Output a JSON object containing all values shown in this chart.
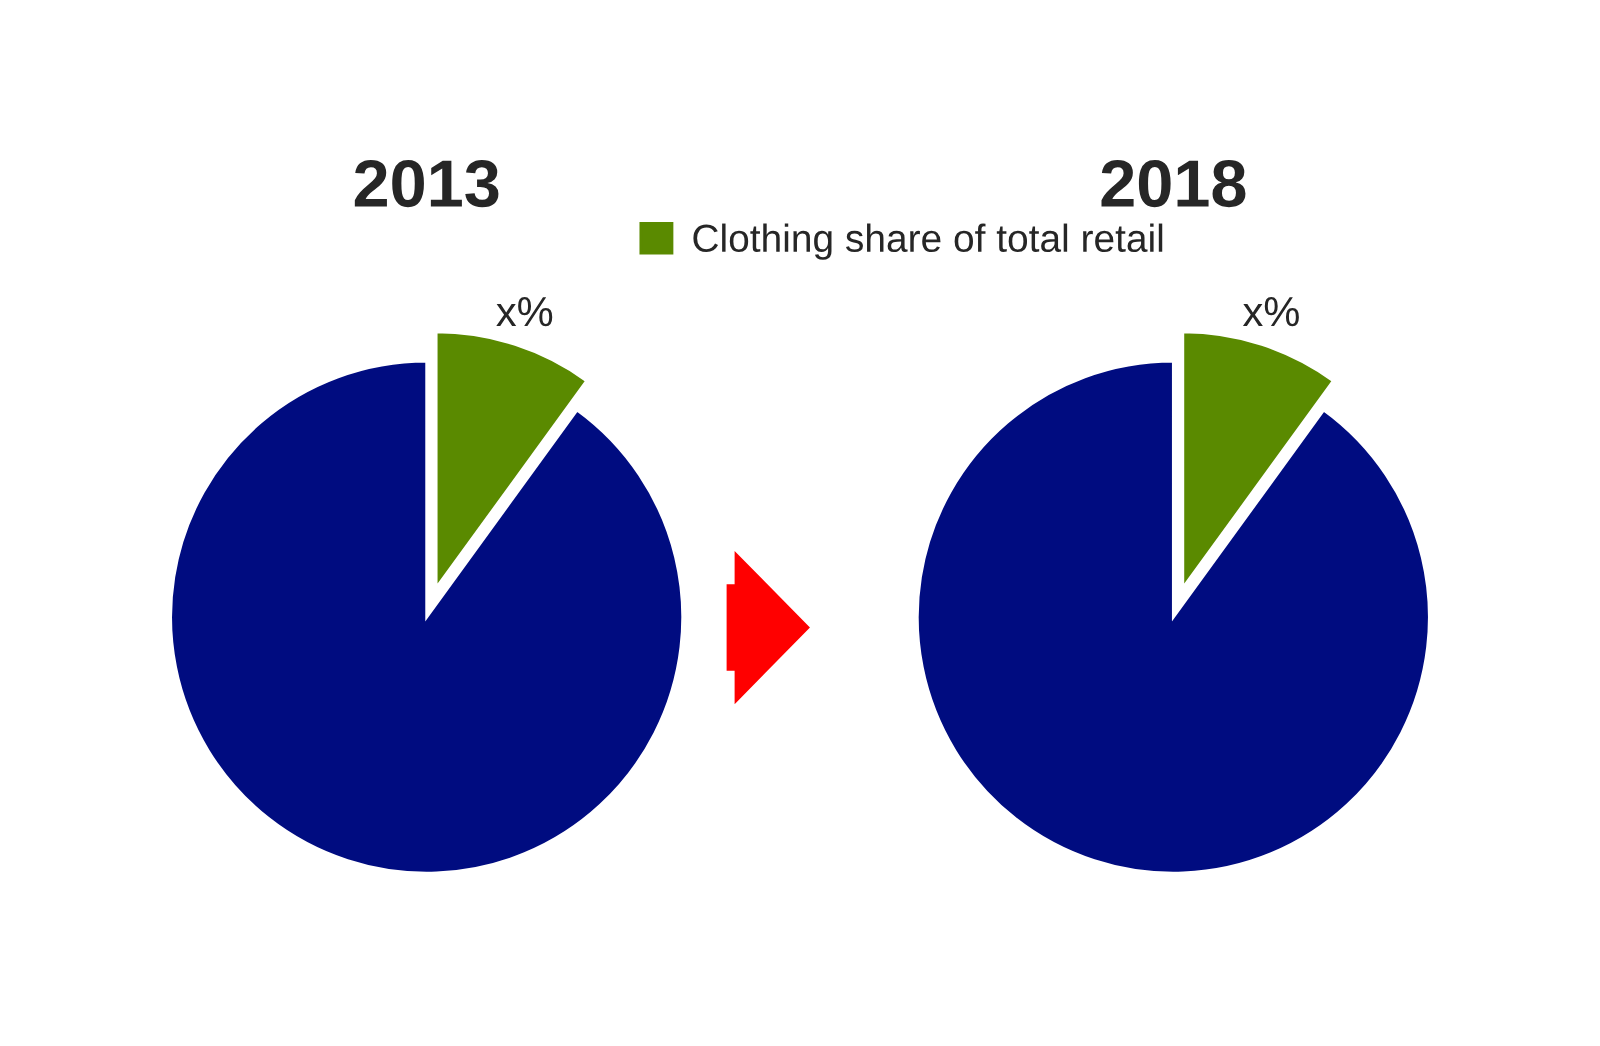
{
  "chart_data": [
    {
      "type": "pie",
      "title": "2013",
      "categories": [
        "Clothing share of total retail",
        null
      ],
      "values": [
        10,
        90
      ],
      "colors": [
        "#5a8a00",
        "#000c80"
      ],
      "value_labels": [
        "x%",
        null
      ],
      "legend": "top right"
    },
    {
      "type": "pie",
      "title": "2018",
      "categories": [
        null,
        null
      ],
      "values": [
        10,
        90
      ],
      "colors": [
        "#5a8a00",
        "#000c80"
      ],
      "value_labels": [
        "x%",
        null
      ]
    }
  ]
}
